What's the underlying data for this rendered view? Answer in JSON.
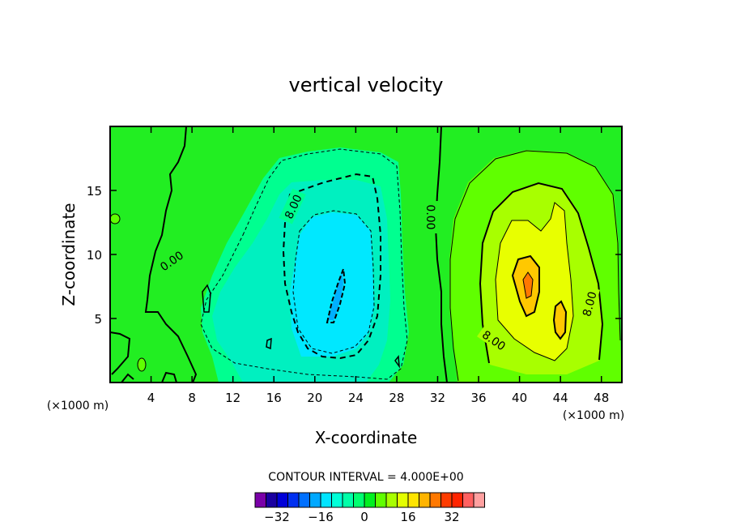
{
  "chart_data": {
    "type": "heatmap",
    "subtype": "filled-contour",
    "title": "vertical velocity",
    "xlabel": "X-coordinate",
    "ylabel": "Z-coordinate",
    "x_unit_note": "(×1000 m)",
    "x_unit_note_right": "(×1000 m)",
    "xlim": [
      0,
      50
    ],
    "ylim": [
      0,
      20
    ],
    "xticks": [
      4,
      8,
      12,
      16,
      20,
      24,
      28,
      32,
      36,
      40,
      44,
      48
    ],
    "yticks": [
      5,
      10,
      15
    ],
    "contour_interval_text": "CONTOUR INTERVAL = 4.000E+00",
    "contour_interval": 4,
    "contour_labels": [
      {
        "text": "0.00"
      },
      {
        "text": "8.00"
      },
      {
        "text": "0.00"
      },
      {
        "text": "8.00"
      },
      {
        "text": "8.00"
      }
    ],
    "colorbar": {
      "levels": [
        -36,
        -32,
        -28,
        -24,
        -20,
        -16,
        -12,
        -8,
        -4,
        0,
        4,
        8,
        12,
        16,
        20,
        24,
        28,
        32,
        36
      ],
      "colors": [
        "#7a00a8",
        "#1a00a0",
        "#0000d8",
        "#0030f0",
        "#0070ff",
        "#00a8ff",
        "#00e4ff",
        "#00ffd8",
        "#00ffa8",
        "#00ff70",
        "#00f020",
        "#60ff00",
        "#a8ff00",
        "#e4ff00",
        "#ffe400",
        "#ffb400",
        "#ff7800",
        "#ff3c00",
        "#ff2400",
        "#ff6060",
        "#ffa0a0"
      ],
      "tick_values": [
        -32,
        -16,
        0,
        16,
        32
      ],
      "tick_labels": [
        "−32",
        "−16",
        "0",
        "16",
        "32"
      ]
    },
    "updraft_max_approx": 20,
    "downdraft_min_approx": -16
  }
}
